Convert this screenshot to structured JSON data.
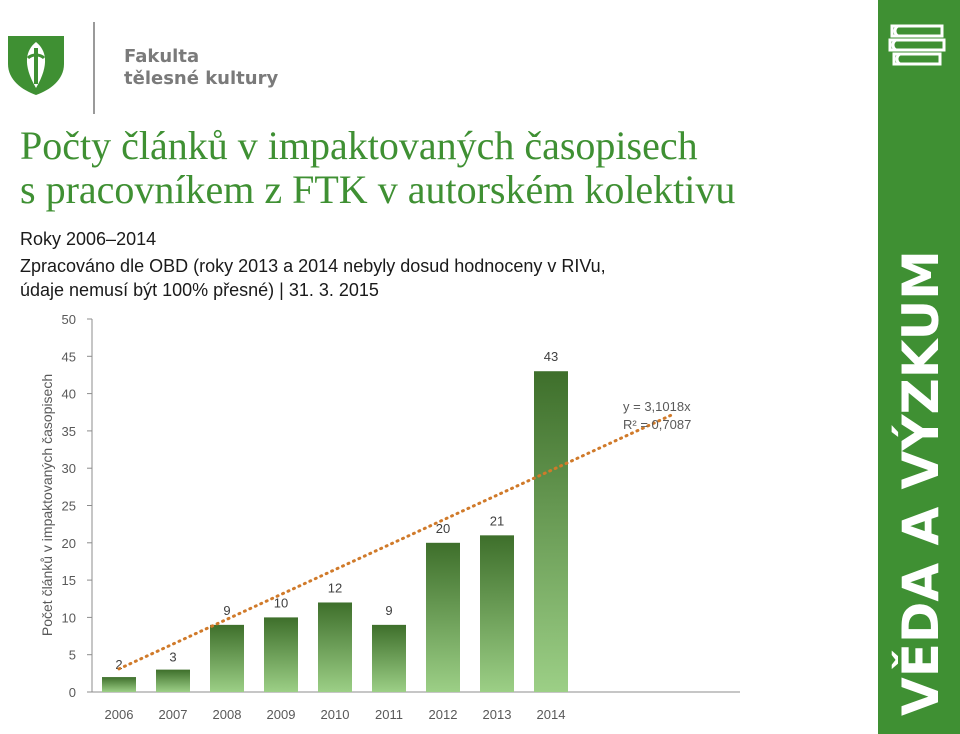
{
  "header": {
    "faculty_line1": "Fakulta",
    "faculty_line2": "tělesné kultury"
  },
  "page": {
    "title_line1": "Počty článků v impaktovaných časopisech",
    "title_line2": "s pracovníkem z FTK v autorském kolektivu",
    "subtitle": "Roky 2006–2014",
    "note_line1": "Zpracováno dle OBD (roky 2013 a 2014 nebyly dosud hodnoceny v RIVu,",
    "note_line2": "údaje nemusí být 100% přesné) | 31. 3. 2015"
  },
  "side_band": {
    "label": "VĚDA A VÝZKUM",
    "icon": "books-icon",
    "color": "#3f9033"
  },
  "colors": {
    "title": "#3f9033",
    "bar_dark": "#3e6f2b",
    "bar_light": "#9ccf86",
    "trendline": "#d07a2a"
  },
  "chart_data": {
    "type": "bar",
    "categories": [
      "2006",
      "2007",
      "2008",
      "2009",
      "2010",
      "2011",
      "2012",
      "2013",
      "2014"
    ],
    "values": [
      2,
      3,
      9,
      10,
      12,
      9,
      20,
      21,
      43
    ],
    "data_labels": [
      "2",
      "3",
      "9",
      "10",
      "12",
      "9",
      "20",
      "21",
      "43"
    ],
    "ylabel": "Počet článků v impaktovaných časopisech",
    "ylim": [
      0,
      50
    ],
    "yticks": [
      0,
      5,
      10,
      15,
      20,
      25,
      30,
      35,
      40,
      45,
      50
    ],
    "ytick_labels": [
      "0",
      "5",
      "10",
      "15",
      "20",
      "25",
      "30",
      "35",
      "40",
      "45",
      "50"
    ],
    "grid": false,
    "trendline": {
      "type": "linear",
      "slope": 3.1018,
      "x_start": 1,
      "x_end": 12,
      "equation": "y = 3,1018x",
      "r_squared": "R² = 0,7087"
    }
  }
}
